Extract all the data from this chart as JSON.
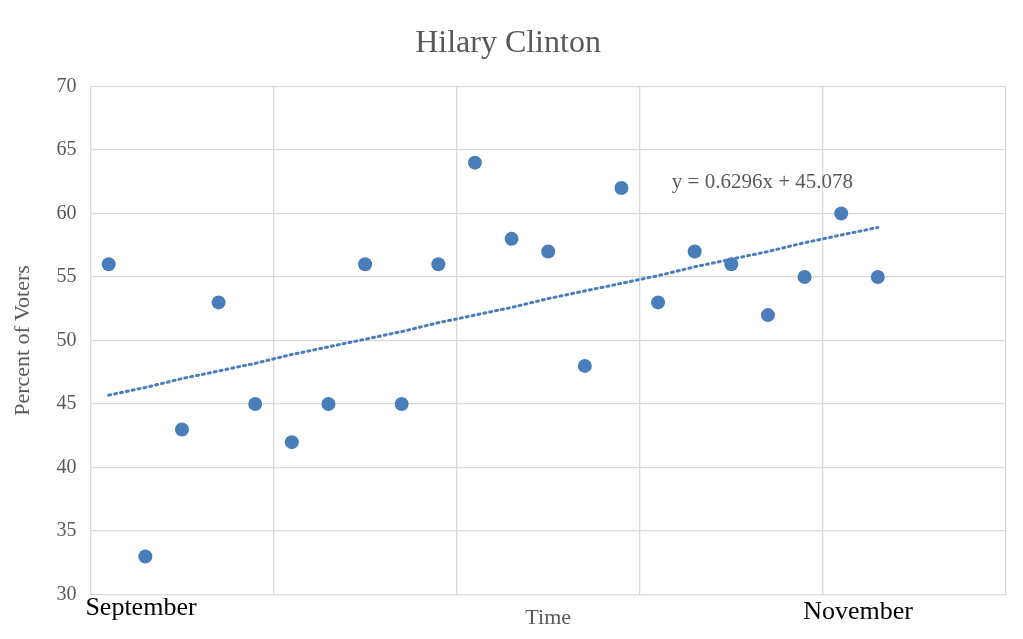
{
  "chart_data": {
    "type": "scatter",
    "title": "Hilary Clinton",
    "xlabel": "Time",
    "ylabel": "Percent of Voters",
    "categories": [
      null,
      null,
      null,
      null,
      null,
      null,
      null,
      null,
      null,
      null,
      null,
      null,
      null,
      null,
      null,
      null,
      null,
      null,
      null,
      null,
      null,
      null,
      null,
      null,
      null
    ],
    "series": [
      {
        "color": "#4a7ebb",
        "values": [
          56,
          33,
          43,
          53,
          45,
          42,
          45,
          56,
          45,
          56,
          64,
          58,
          57,
          48,
          62,
          53,
          57,
          56,
          52,
          55,
          60,
          55,
          null,
          null,
          null
        ]
      },
      {
        "type": "line",
        "color": "#4a7ebb",
        "line_style": "dotted",
        "marker": "none",
        "values": [
          45.7,
          46.3,
          47.0,
          47.6,
          48.2,
          48.9,
          49.5,
          50.1,
          50.7,
          51.4,
          52.0,
          52.6,
          53.3,
          53.9,
          54.5,
          55.1,
          55.8,
          56.4,
          57.0,
          57.7,
          58.3,
          58.9,
          null,
          null,
          null
        ]
      }
    ],
    "ylim": [
      30,
      70
    ],
    "yticks": [
      30,
      35,
      40,
      45,
      50,
      55,
      60,
      65,
      70
    ],
    "tick_labels": "y",
    "grid": true,
    "legend": false,
    "marker": "circle",
    "annotations": [
      "September",
      "November",
      "y = 0.6296x + 45.078"
    ]
  }
}
